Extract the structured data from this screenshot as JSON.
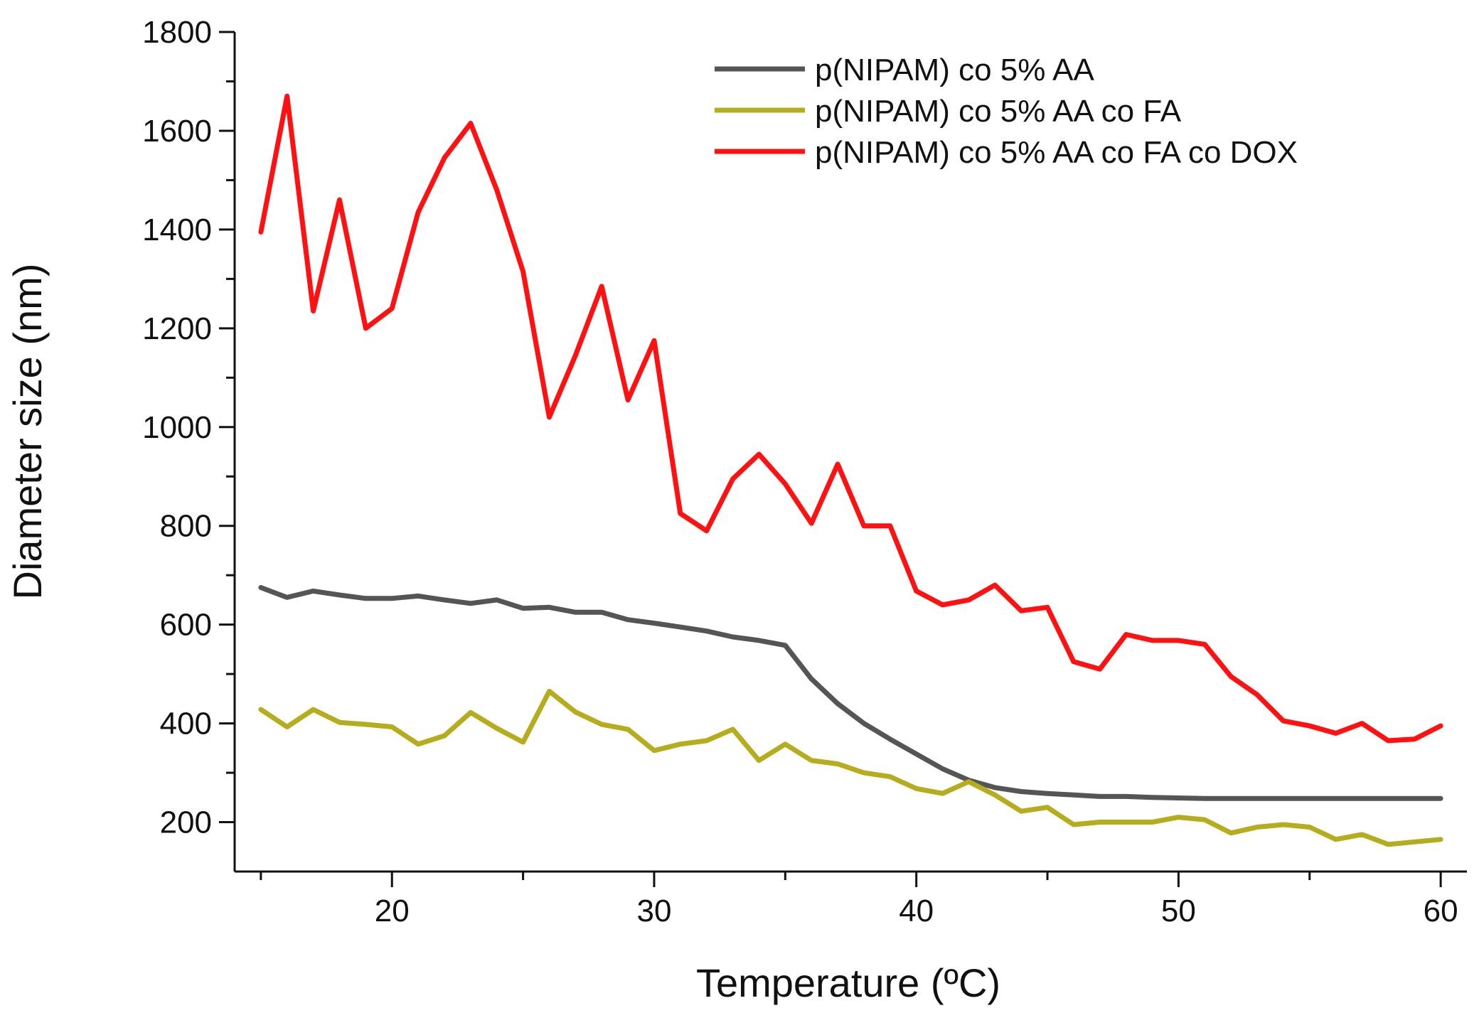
{
  "chart_data": {
    "type": "line",
    "title": "",
    "xlabel": "Temperature (ºC)",
    "ylabel": "Diameter size (nm)",
    "xlim": [
      14,
      61
    ],
    "ylim": [
      100,
      1800
    ],
    "x_ticks": [
      20,
      30,
      40,
      50,
      60
    ],
    "x_tick_labels": [
      "20",
      "30",
      "40",
      "50",
      "60"
    ],
    "y_ticks": [
      200,
      400,
      600,
      800,
      1000,
      1200,
      1400,
      1600,
      1800
    ],
    "y_tick_labels": [
      "200",
      "400",
      "600",
      "800",
      "1000",
      "1200",
      "1400",
      "1600",
      "1800"
    ],
    "legend_position": "top-right",
    "grid": false,
    "x": [
      15,
      16,
      17,
      18,
      19,
      20,
      21,
      22,
      23,
      24,
      25,
      26,
      27,
      28,
      29,
      30,
      31,
      32,
      33,
      34,
      35,
      36,
      37,
      38,
      39,
      40,
      41,
      42,
      43,
      44,
      45,
      46,
      47,
      48,
      49,
      50,
      51,
      52,
      53,
      54,
      55,
      56,
      57,
      58,
      59,
      60
    ],
    "series": [
      {
        "name": "p(NIPAM) co 5% AA",
        "color": "#555555",
        "values": [
          675,
          655,
          668,
          660,
          653,
          653,
          658,
          650,
          643,
          650,
          633,
          635,
          625,
          625,
          610,
          603,
          595,
          587,
          575,
          568,
          558,
          490,
          440,
          400,
          368,
          338,
          308,
          285,
          270,
          262,
          258,
          255,
          252,
          252,
          250,
          249,
          248,
          248,
          248,
          248,
          248,
          248,
          248,
          248,
          248,
          248
        ]
      },
      {
        "name": "p(NIPAM) co 5% AA co FA",
        "color": "#b5ad1e",
        "values": [
          428,
          393,
          428,
          402,
          398,
          393,
          358,
          375,
          422,
          390,
          362,
          465,
          423,
          398,
          388,
          345,
          358,
          365,
          388,
          325,
          358,
          325,
          318,
          300,
          292,
          268,
          258,
          282,
          255,
          222,
          230,
          195,
          200,
          200,
          200,
          210,
          205,
          178,
          190,
          195,
          190,
          165,
          175,
          155,
          160,
          165
        ]
      },
      {
        "name": "p(NIPAM) co 5% AA co FA co DOX",
        "color": "#ff1111",
        "values": [
          1395,
          1670,
          1235,
          1460,
          1200,
          1240,
          1435,
          1545,
          1615,
          1480,
          1315,
          1020,
          1145,
          1285,
          1055,
          1175,
          825,
          790,
          895,
          945,
          885,
          805,
          925,
          800,
          800,
          668,
          640,
          650,
          680,
          628,
          635,
          525,
          510,
          580,
          568,
          568,
          560,
          495,
          458,
          405,
          395,
          380,
          400,
          365,
          368,
          395
        ]
      }
    ]
  }
}
